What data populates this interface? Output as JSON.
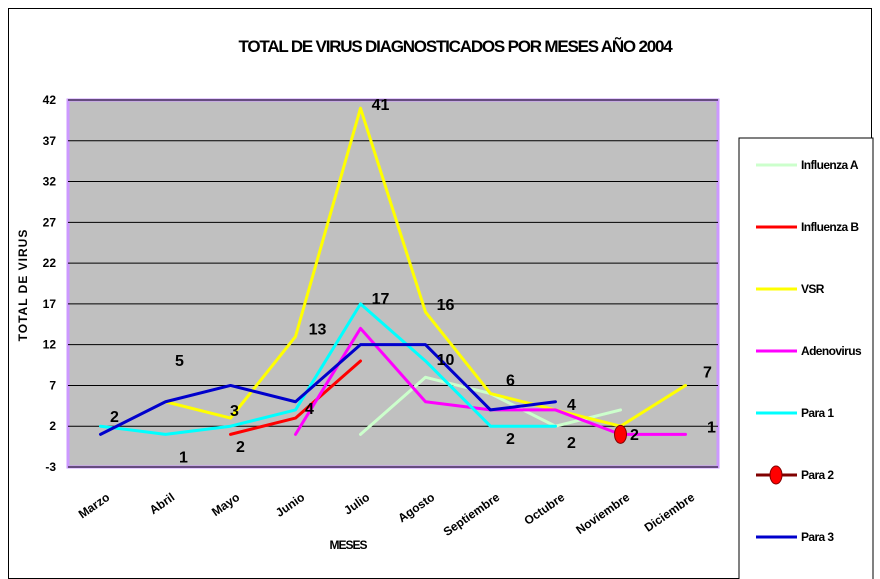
{
  "chart_data": {
    "type": "line",
    "title": "TOTAL DE VIRUS DIAGNOSTICADOS POR MESES AÑO 2004",
    "xlabel": "MESES",
    "ylabel": "TOTAL DE VIRUS",
    "ylim": [
      -3,
      42
    ],
    "yticks": [
      -3,
      2,
      7,
      12,
      17,
      22,
      27,
      32,
      37,
      42
    ],
    "grid": true,
    "legend_position": "right",
    "categories": [
      "Marzo",
      "Abril",
      "Mayo",
      "Junio",
      "Julio",
      "Agosto",
      "Septiembre",
      "Octubre",
      "Noviembre",
      "Diciembre"
    ],
    "series": [
      {
        "name": "Influenza A",
        "color": "#ccffcc",
        "marker": "none",
        "values": [
          null,
          null,
          null,
          null,
          1,
          8,
          6,
          2,
          4,
          null
        ]
      },
      {
        "name": "Influenza B",
        "color": "#ff0000",
        "marker": "none",
        "values": [
          null,
          null,
          1,
          3,
          10,
          null,
          null,
          null,
          null,
          null
        ]
      },
      {
        "name": "VSR",
        "color": "#ffff00",
        "marker": "none",
        "values": [
          null,
          5,
          3,
          13,
          41,
          16,
          6,
          4,
          2,
          7
        ]
      },
      {
        "name": "Adenovirus",
        "color": "#ff00ff",
        "marker": "none",
        "values": [
          null,
          null,
          null,
          1,
          14,
          5,
          4,
          4,
          1,
          1
        ]
      },
      {
        "name": "Para 1",
        "color": "#00ffff",
        "marker": "none",
        "values": [
          2,
          1,
          2,
          4,
          17,
          10,
          2,
          2,
          null,
          null
        ]
      },
      {
        "name": "Para 2",
        "color": "#800000",
        "marker": "circle",
        "marker_fill": "#ff0000",
        "values": [
          null,
          null,
          null,
          null,
          null,
          null,
          null,
          null,
          1,
          null
        ]
      },
      {
        "name": "Para 3",
        "color": "#0000cc",
        "marker": "none",
        "values": [
          1,
          5,
          7,
          5,
          12,
          12,
          4,
          5,
          null,
          null
        ]
      }
    ],
    "data_labels": [
      {
        "category": "Marzo",
        "value": 2,
        "text": "2"
      },
      {
        "category": "Abril",
        "value": 5,
        "text": "5"
      },
      {
        "category": "Abril",
        "value": 1,
        "text": "1"
      },
      {
        "category": "Mayo",
        "value": 3,
        "text": "3"
      },
      {
        "category": "Mayo",
        "value": 2,
        "text": "2"
      },
      {
        "category": "Junio",
        "value": 13,
        "text": "13"
      },
      {
        "category": "Junio",
        "value": 4,
        "text": "4"
      },
      {
        "category": "Julio",
        "value": 41,
        "text": "41"
      },
      {
        "category": "Julio",
        "value": 17,
        "text": "17"
      },
      {
        "category": "Agosto",
        "value": 16,
        "text": "16"
      },
      {
        "category": "Agosto",
        "value": 10,
        "text": "10"
      },
      {
        "category": "Septiembre",
        "value": 6,
        "text": "6"
      },
      {
        "category": "Septiembre",
        "value": 2,
        "text": "2"
      },
      {
        "category": "Octubre",
        "value": 4,
        "text": "4"
      },
      {
        "category": "Octubre",
        "value": 2,
        "text": "2"
      },
      {
        "category": "Noviembre",
        "value": 2,
        "text": "2"
      },
      {
        "category": "Diciembre",
        "value": 7,
        "text": "7"
      },
      {
        "category": "Diciembre",
        "value": 1,
        "text": "1"
      }
    ],
    "plot_background": "#c0c0c0",
    "plot_border": "#cc99ff"
  }
}
